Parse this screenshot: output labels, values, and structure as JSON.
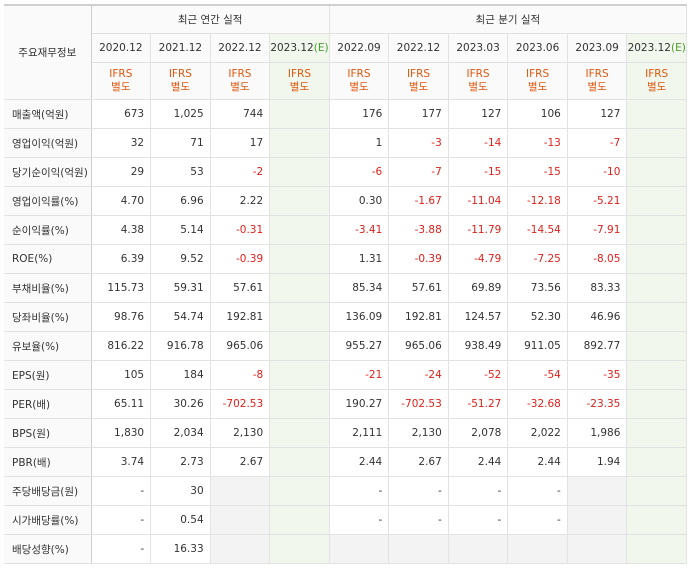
{
  "header": {
    "row_label": "주요재무정보",
    "annual_title": "최근 연간 실적",
    "quarter_title": "최근 분기 실적",
    "periods": [
      "2020.12",
      "2021.12",
      "2022.12",
      "2023.12",
      "2022.09",
      "2022.12",
      "2023.03",
      "2023.06",
      "2023.09",
      "2023.12"
    ],
    "estimate_mark": "(E)",
    "ifrs_top": "IFRS",
    "ifrs_bottom": "별도"
  },
  "rows": [
    {
      "label": "매출액(억원)",
      "values": [
        "673",
        "1,025",
        "744",
        "",
        "176",
        "177",
        "127",
        "106",
        "127",
        ""
      ]
    },
    {
      "label": "영업이익(억원)",
      "values": [
        "32",
        "71",
        "17",
        "",
        "1",
        "-3",
        "-14",
        "-13",
        "-7",
        ""
      ]
    },
    {
      "label": "당기순이익(억원)",
      "values": [
        "29",
        "53",
        "-2",
        "",
        "-6",
        "-7",
        "-15",
        "-15",
        "-10",
        ""
      ]
    },
    {
      "label": "영업이익률(%)",
      "values": [
        "4.70",
        "6.96",
        "2.22",
        "",
        "0.30",
        "-1.67",
        "-11.04",
        "-12.18",
        "-5.21",
        ""
      ]
    },
    {
      "label": "순이익률(%)",
      "values": [
        "4.38",
        "5.14",
        "-0.31",
        "",
        "-3.41",
        "-3.88",
        "-11.79",
        "-14.54",
        "-7.91",
        ""
      ]
    },
    {
      "label": "ROE(%)",
      "values": [
        "6.39",
        "9.52",
        "-0.39",
        "",
        "1.31",
        "-0.39",
        "-4.79",
        "-7.25",
        "-8.05",
        ""
      ]
    },
    {
      "label": "부채비율(%)",
      "values": [
        "115.73",
        "59.31",
        "57.61",
        "",
        "85.34",
        "57.61",
        "69.89",
        "73.56",
        "83.33",
        ""
      ]
    },
    {
      "label": "당좌비율(%)",
      "values": [
        "98.76",
        "54.74",
        "192.81",
        "",
        "136.09",
        "192.81",
        "124.57",
        "52.30",
        "46.96",
        ""
      ]
    },
    {
      "label": "유보율(%)",
      "values": [
        "816.22",
        "916.78",
        "965.06",
        "",
        "955.27",
        "965.06",
        "938.49",
        "911.05",
        "892.77",
        ""
      ]
    },
    {
      "label": "EPS(원)",
      "values": [
        "105",
        "184",
        "-8",
        "",
        "-21",
        "-24",
        "-52",
        "-54",
        "-35",
        ""
      ]
    },
    {
      "label": "PER(배)",
      "values": [
        "65.11",
        "30.26",
        "-702.53",
        "",
        "190.27",
        "-702.53",
        "-51.27",
        "-32.68",
        "-23.35",
        ""
      ]
    },
    {
      "label": "BPS(원)",
      "values": [
        "1,830",
        "2,034",
        "2,130",
        "",
        "2,111",
        "2,130",
        "2,078",
        "2,022",
        "1,986",
        ""
      ]
    },
    {
      "label": "PBR(배)",
      "values": [
        "3.74",
        "2.73",
        "2.67",
        "",
        "2.44",
        "2.67",
        "2.44",
        "2.44",
        "1.94",
        ""
      ]
    },
    {
      "label": "주당배당금(원)",
      "values": [
        "-",
        "30",
        "",
        "",
        "-",
        "-",
        "-",
        "-",
        "",
        ""
      ]
    },
    {
      "label": "시가배당률(%)",
      "values": [
        "-",
        "0.54",
        "",
        "",
        "-",
        "-",
        "-",
        "-",
        "",
        ""
      ]
    },
    {
      "label": "배당성향(%)",
      "values": [
        "-",
        "16.33",
        "",
        "",
        "",
        "",
        "",
        "",
        "",
        ""
      ]
    }
  ]
}
